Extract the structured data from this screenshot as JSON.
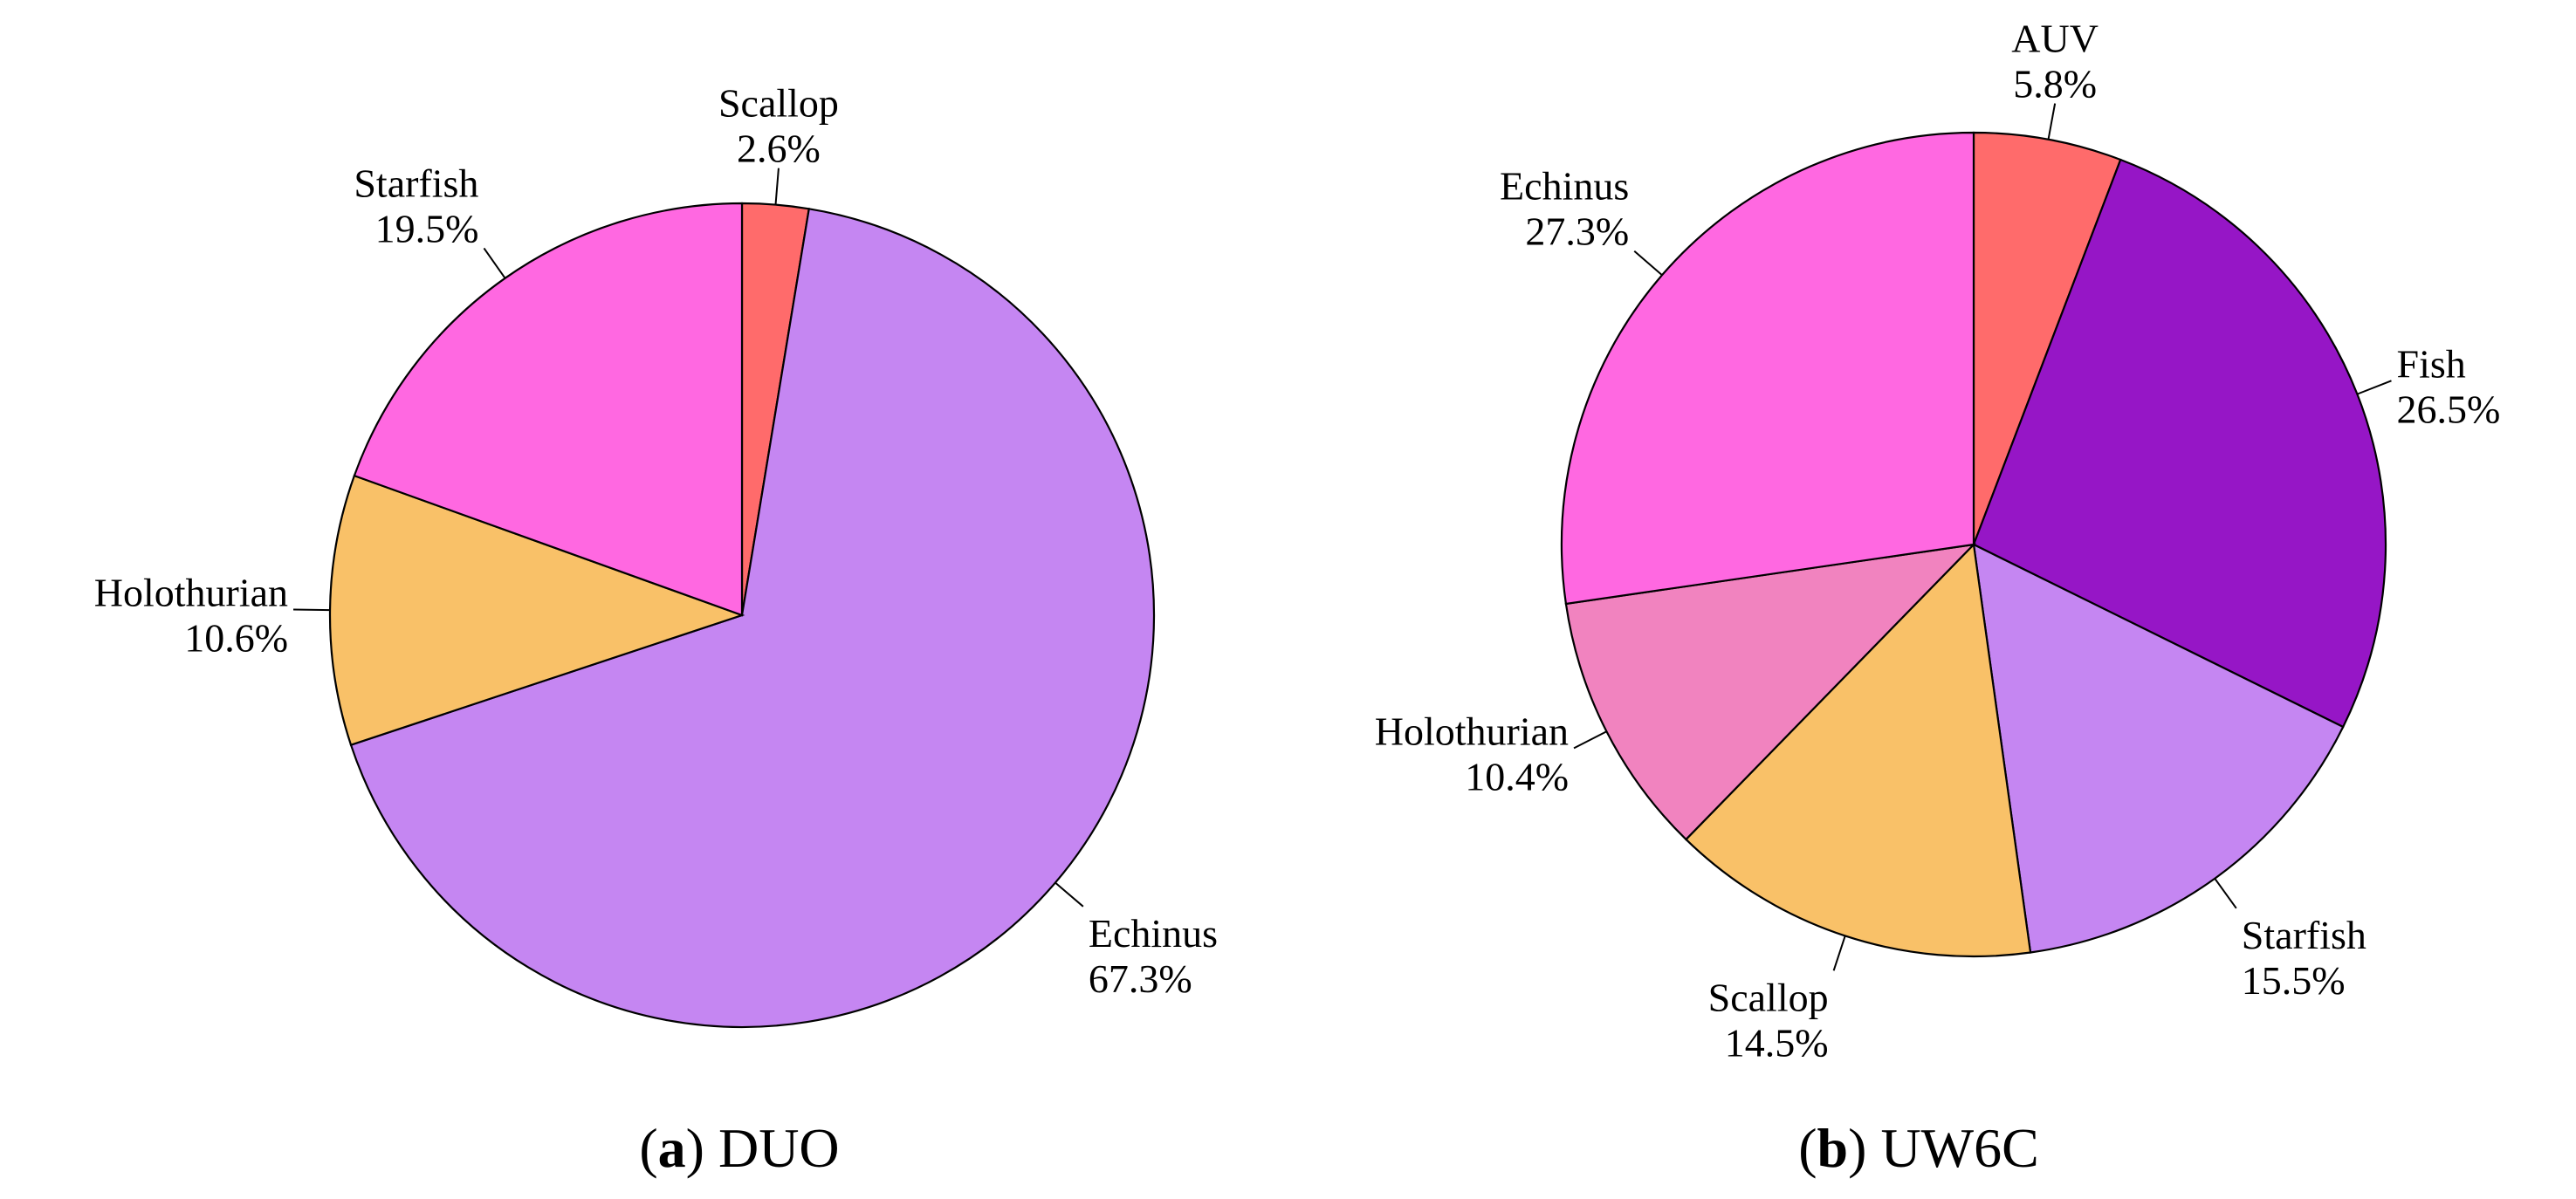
{
  "chart_data": [
    {
      "type": "pie",
      "caption": {
        "letter": "a",
        "name": "DUO"
      },
      "start_angle": "top",
      "direction": "clockwise",
      "slices": [
        {
          "label": "Scallop",
          "value": 2.6,
          "text": "2.6%",
          "color": "#FF6B6B"
        },
        {
          "label": "Echinus",
          "value": 67.3,
          "text": "67.3%",
          "color": "#C586F2"
        },
        {
          "label": "Holothurian",
          "value": 10.6,
          "text": "10.6%",
          "color": "#F9C168"
        },
        {
          "label": "Starfish",
          "value": 19.5,
          "text": "19.5%",
          "color": "#FF68E1"
        }
      ]
    },
    {
      "type": "pie",
      "caption": {
        "letter": "b",
        "name": "UW6C"
      },
      "start_angle": "top",
      "direction": "clockwise",
      "slices": [
        {
          "label": "AUV",
          "value": 5.8,
          "text": "5.8%",
          "color": "#FF6B6B"
        },
        {
          "label": "Fish",
          "value": 26.5,
          "text": "26.5%",
          "color": "#9616C6"
        },
        {
          "label": "Starfish",
          "value": 15.5,
          "text": "15.5%",
          "color": "#C586F2"
        },
        {
          "label": "Scallop",
          "value": 14.5,
          "text": "14.5%",
          "color": "#F9C168"
        },
        {
          "label": "Holothurian",
          "value": 10.4,
          "text": "10.4%",
          "color": "#F183BF"
        },
        {
          "label": "Echinus",
          "value": 27.3,
          "text": "27.3%",
          "color": "#FF68E1"
        }
      ]
    }
  ]
}
